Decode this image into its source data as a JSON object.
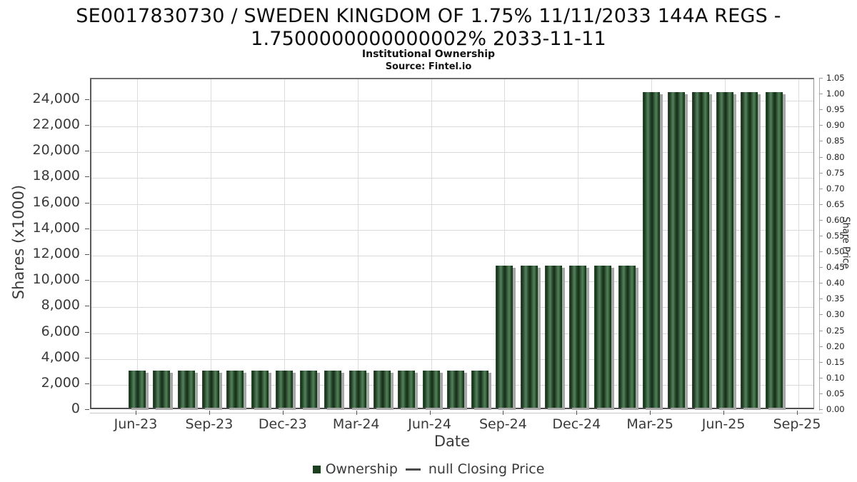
{
  "header": {
    "title_line1": "SE0017830730 / SWEDEN KINGDOM OF 1.75% 11/11/2033 144A REGS -",
    "title_line2": "1.7500000000000002% 2033-11-11",
    "subtitle": "Institutional Ownership",
    "source": "Source: Fintel.io"
  },
  "chart_data": {
    "type": "bar",
    "title": "Institutional Ownership",
    "source": "Source: Fintel.io",
    "xlabel": "Date",
    "ylabel_left": "Shares (x1000)",
    "ylabel_right": "Share Price",
    "grid": true,
    "legend_position": "bottom",
    "categories": [
      "Jun-23",
      "Jul-23",
      "Aug-23",
      "Sep-23",
      "Oct-23",
      "Nov-23",
      "Dec-23",
      "Jan-24",
      "Feb-24",
      "Mar-24",
      "Apr-24",
      "May-24",
      "Jun-24",
      "Jul-24",
      "Aug-24",
      "Sep-24",
      "Oct-24",
      "Nov-24",
      "Dec-24",
      "Jan-25",
      "Feb-25",
      "Mar-25",
      "Apr-25",
      "May-25",
      "Jun-25",
      "Jul-25",
      "Aug-25"
    ],
    "series": [
      {
        "name": "Ownership",
        "type": "bar",
        "units": "shares x1000",
        "values": [
          2870,
          2870,
          2870,
          2870,
          2870,
          2870,
          2870,
          2870,
          2870,
          2870,
          2870,
          2870,
          2870,
          2870,
          2870,
          11000,
          11000,
          11000,
          11000,
          11000,
          11000,
          24450,
          24450,
          24450,
          24450,
          24450,
          24450
        ]
      },
      {
        "name": "null Closing Price",
        "type": "line",
        "values": []
      }
    ],
    "x_tick_labels": [
      "Jun-23",
      "Sep-23",
      "Dec-23",
      "Mar-24",
      "Jun-24",
      "Sep-24",
      "Dec-24",
      "Mar-25",
      "Jun-25",
      "Sep-25"
    ],
    "left_axis": {
      "label": "Shares (x1000)",
      "min": 0,
      "max": 25650,
      "step": 2000,
      "ticks": [
        "0",
        "2,000",
        "4,000",
        "6,000",
        "8,000",
        "10,000",
        "12,000",
        "14,000",
        "16,000",
        "18,000",
        "20,000",
        "22,000",
        "24,000"
      ]
    },
    "right_axis": {
      "label": "Share Price",
      "min": 0.0,
      "max": 1.05,
      "step": 0.05,
      "ticks": [
        "0.00",
        "0.05",
        "0.10",
        "0.15",
        "0.20",
        "0.25",
        "0.30",
        "0.35",
        "0.40",
        "0.45",
        "0.50",
        "0.55",
        "0.60",
        "0.65",
        "0.70",
        "0.75",
        "0.80",
        "0.85",
        "0.90",
        "0.95",
        "1.00",
        "1.05"
      ]
    }
  },
  "legend": {
    "ownership_label": "Ownership",
    "price_label": "null Closing Price"
  },
  "colors": {
    "bar_green_dark": "#17331b",
    "bar_green_light": "#57805e",
    "legend_square": "#1d4022",
    "shadow": "#a6a6a6",
    "grid": "#d9d9d9",
    "axis": "#555555",
    "tick_text": "#3a3a3a"
  }
}
